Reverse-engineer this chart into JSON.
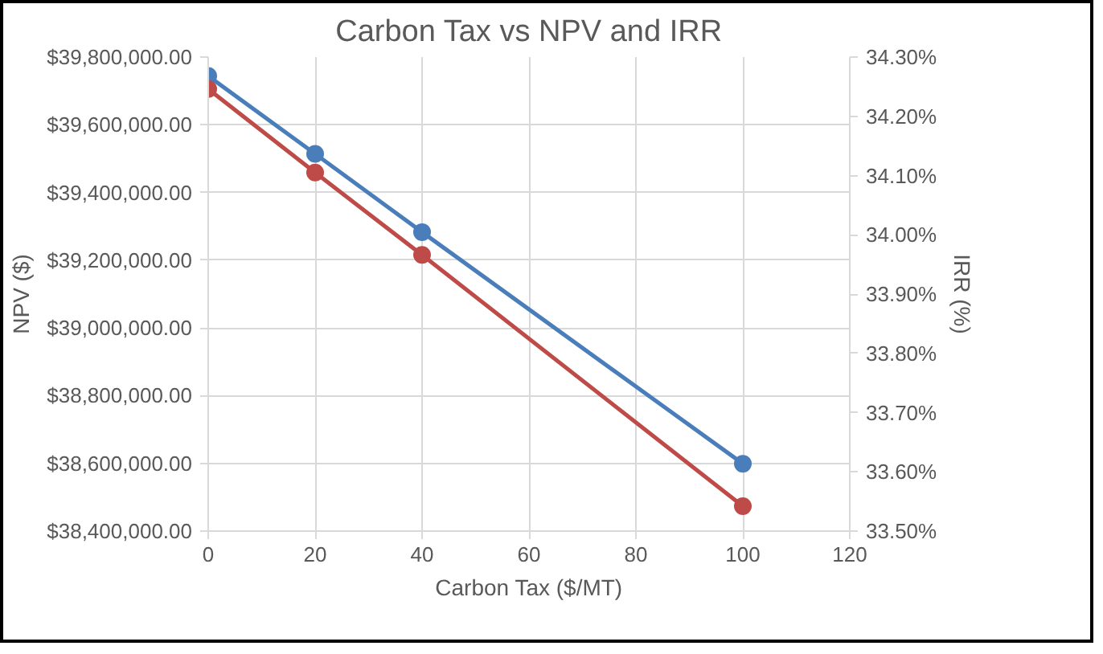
{
  "chart_data": {
    "type": "line",
    "title": "Carbon Tax vs NPV and IRR",
    "xlabel": "Carbon Tax ($/MT)",
    "ylabel": "NPV ($)",
    "y2label": "IRR (%)",
    "x": [
      0,
      20,
      40,
      100
    ],
    "series": [
      {
        "color": "#4a7ebb",
        "values": [
          39744000,
          39514000,
          39283000,
          38599000
        ]
      },
      {
        "color": "#be4b48",
        "values": [
          34.246,
          34.105,
          33.966,
          33.542
        ],
        "axis": "y2"
      }
    ],
    "xlim": [
      0,
      120
    ],
    "xticks": [
      0,
      20,
      40,
      60,
      80,
      100,
      120
    ],
    "ylim": [
      38400000,
      39800000
    ],
    "yticks": [
      {
        "value": 38400000,
        "label": "$38,400,000.00"
      },
      {
        "value": 38600000,
        "label": "$38,600,000.00"
      },
      {
        "value": 38800000,
        "label": "$38,800,000.00"
      },
      {
        "value": 39000000,
        "label": "$39,000,000.00"
      },
      {
        "value": 39200000,
        "label": "$39,200,000.00"
      },
      {
        "value": 39400000,
        "label": "$39,400,000.00"
      },
      {
        "value": 39600000,
        "label": "$39,600,000.00"
      },
      {
        "value": 39800000,
        "label": "$39,800,000.00"
      }
    ],
    "y2lim": [
      33.5,
      34.3
    ],
    "y2ticks": [
      {
        "value": 33.5,
        "label": "33.50%"
      },
      {
        "value": 33.6,
        "label": "33.60%"
      },
      {
        "value": 33.7,
        "label": "33.70%"
      },
      {
        "value": 33.8,
        "label": "33.80%"
      },
      {
        "value": 33.9,
        "label": "33.90%"
      },
      {
        "value": 34.0,
        "label": "34.00%"
      },
      {
        "value": 34.1,
        "label": "34.10%"
      },
      {
        "value": 34.2,
        "label": "34.20%"
      },
      {
        "value": 34.3,
        "label": "34.30%"
      }
    ],
    "grid": true,
    "marker": "circle",
    "line_style": "solid"
  }
}
